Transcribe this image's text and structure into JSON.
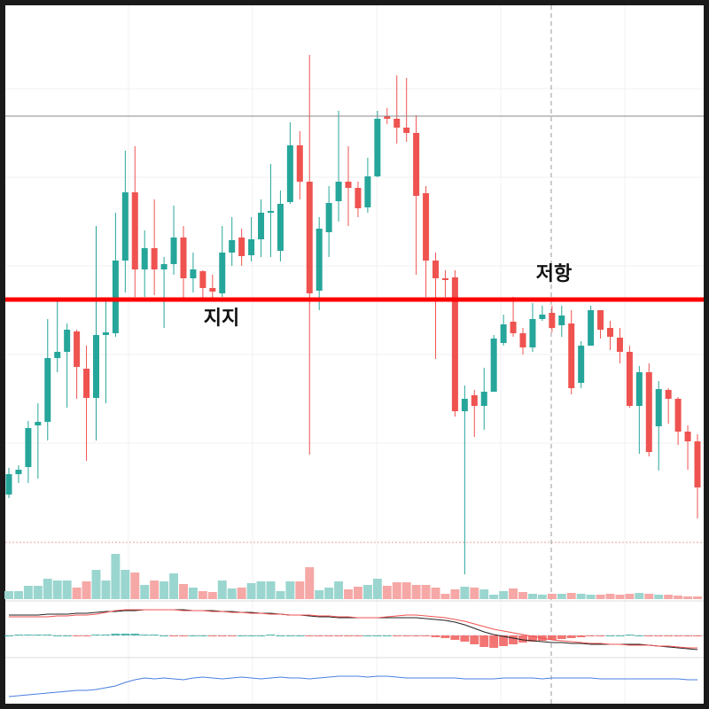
{
  "chart_data": {
    "type": "candlestick",
    "up_color": "#26a69a",
    "down_color": "#ef5350",
    "volume_up_color": "#9ad6cf",
    "volume_down_color": "#f5a8a6",
    "ylim": [
      -30,
      612
    ],
    "open": [
      62,
      85,
      93,
      140,
      144,
      216,
      223,
      246,
      204,
      171,
      242,
      244,
      326,
      403,
      316,
      340,
      316,
      322,
      352,
      306,
      314,
      295,
      289,
      335,
      352,
      332,
      350,
      380,
      337,
      392,
      456,
      415,
      292,
      358,
      393,
      415,
      408,
      386,
      421,
      489,
      486,
      476,
      470,
      402,
      326,
      306,
      307,
      156,
      174,
      162,
      178,
      233,
      257,
      244,
      228,
      260,
      267,
      253,
      255,
      188,
      230,
      270,
      250,
      239,
      223,
      162,
      200,
      139,
      180,
      170,
      133,
      122
    ],
    "close": [
      85,
      90,
      137,
      144,
      216,
      223,
      248,
      206,
      171,
      242,
      245,
      326,
      403,
      316,
      340,
      316,
      322,
      352,
      306,
      316,
      295,
      291,
      335,
      349,
      331,
      350,
      380,
      382,
      390,
      456,
      415,
      289,
      362,
      391,
      415,
      408,
      385,
      421,
      486,
      486,
      476,
      470,
      399,
      326,
      306,
      304,
      156,
      170,
      162,
      178,
      238,
      254,
      244,
      228,
      260,
      265,
      250,
      264,
      182,
      230,
      270,
      248,
      240,
      223,
      162,
      200,
      110,
      181,
      170,
      133,
      122,
      70
    ],
    "high": [
      92,
      95,
      145,
      165,
      260,
      280,
      255,
      248,
      230,
      365,
      280,
      380,
      450,
      455,
      360,
      395,
      330,
      388,
      365,
      335,
      315,
      310,
      365,
      375,
      362,
      375,
      395,
      435,
      405,
      482,
      472,
      558,
      375,
      410,
      495,
      455,
      415,
      442,
      495,
      498,
      535,
      532,
      490,
      410,
      335,
      315,
      315,
      185,
      180,
      205,
      242,
      265,
      285,
      250,
      278,
      275,
      275,
      275,
      270,
      235,
      275,
      270,
      258,
      250,
      230,
      207,
      210,
      190,
      182,
      172,
      140,
      130
    ],
    "low": [
      58,
      75,
      75,
      80,
      123,
      200,
      160,
      170,
      100,
      123,
      165,
      240,
      290,
      285,
      285,
      287,
      250,
      310,
      280,
      290,
      280,
      280,
      285,
      320,
      320,
      325,
      330,
      330,
      325,
      390,
      395,
      107,
      270,
      330,
      370,
      365,
      375,
      380,
      420,
      480,
      458,
      460,
      310,
      285,
      215,
      285,
      150,
      -28,
      127,
      135,
      178,
      230,
      240,
      220,
      223,
      258,
      245,
      240,
      175,
      182,
      230,
      238,
      225,
      210,
      160,
      108,
      105,
      89,
      142,
      118,
      90,
      35
    ],
    "volume": [
      9,
      9,
      15,
      15,
      23,
      21,
      21,
      13,
      20,
      33,
      21,
      51,
      33,
      30,
      16,
      21,
      20,
      29,
      17,
      13,
      9,
      8,
      21,
      12,
      13,
      18,
      20,
      20,
      9,
      20,
      20,
      36,
      10,
      13,
      20,
      11,
      14,
      16,
      23,
      15,
      19,
      19,
      16,
      16,
      13,
      6,
      11,
      14,
      13,
      11,
      5,
      9,
      12,
      8,
      6,
      5,
      6,
      6,
      7,
      6,
      5,
      5,
      6,
      5,
      6,
      7,
      6,
      5,
      5,
      4,
      3,
      3
    ],
    "volume_ylim": [
      0,
      60
    ],
    "hlines": [
      {
        "value": 489,
        "color": "#888888"
      },
      {
        "value": 282,
        "color": "#ff0000"
      }
    ],
    "annotations": [
      "지지",
      "저항"
    ],
    "macd": {
      "color": "#222222",
      "values": [
        23,
        23,
        23,
        23,
        24,
        24,
        24,
        25,
        25,
        26,
        27,
        27,
        28,
        28,
        29,
        29,
        29,
        29,
        29,
        28,
        28,
        28,
        27,
        27,
        26,
        26,
        25,
        25,
        24,
        23,
        23,
        22,
        21,
        21,
        20,
        20,
        20,
        20,
        20,
        20,
        20,
        20,
        20,
        19,
        18,
        17,
        15,
        12,
        8,
        4,
        1,
        -1,
        -3,
        -5,
        -6,
        -7,
        -8,
        -8,
        -9,
        -9,
        -10,
        -10,
        -10,
        -10,
        -10,
        -10,
        -11,
        -12,
        -13,
        -14,
        -15,
        -16
      ]
    },
    "signal": {
      "color": "#ef5350",
      "values": [
        21,
        21,
        21,
        21,
        21,
        22,
        22,
        23,
        23,
        24,
        26,
        28,
        29,
        29,
        29,
        29,
        29,
        29,
        28,
        28,
        28,
        27,
        27,
        26,
        26,
        25,
        25,
        24,
        24,
        23,
        23,
        23,
        22,
        22,
        21,
        21,
        20,
        20,
        20,
        21,
        22,
        23,
        23,
        22,
        21,
        20,
        18,
        16,
        13,
        10,
        7,
        5,
        3,
        1,
        -1,
        -3,
        -5,
        -6,
        -7,
        -8,
        -9,
        -9,
        -10,
        -10,
        -11,
        -11,
        -11,
        -12,
        -12,
        -13,
        -14,
        -14
      ]
    },
    "histogram": {
      "up_color": "#26a69a",
      "down_color": "#ef5350",
      "values": [
        0,
        1,
        1,
        1,
        1,
        0,
        0,
        -1,
        -1,
        1,
        1,
        2,
        2,
        2,
        1,
        1,
        0,
        -1,
        -1,
        0,
        0,
        -1,
        -1,
        -1,
        0,
        0,
        0,
        1,
        0,
        0,
        0,
        -1,
        -1,
        -1,
        -1,
        -1,
        -1,
        0,
        0,
        0,
        -1,
        -1,
        -1,
        -1,
        -2,
        -3,
        -5,
        -7,
        -10,
        -13,
        -14,
        -12,
        -10,
        -8,
        -7,
        -6,
        -5,
        -4,
        -3,
        -2,
        -1,
        -1,
        0,
        0,
        1,
        0,
        -1,
        -1,
        -1,
        -1,
        -1,
        -1
      ]
    },
    "macd_ylim": [
      -20,
      40
    ],
    "rsi": {
      "color": "#4a7fe0",
      "values": [
        14,
        15,
        16,
        17,
        18,
        19,
        20,
        21,
        21,
        22,
        24,
        26,
        30,
        33,
        35,
        34,
        35,
        34,
        33,
        35,
        36,
        35,
        34,
        35,
        36,
        35,
        34,
        35,
        36,
        35,
        35,
        34,
        35,
        36,
        37,
        37,
        37,
        36,
        37,
        37,
        36,
        35,
        35,
        35,
        35,
        35,
        35,
        34,
        34,
        34,
        34,
        35,
        35,
        35,
        35,
        34,
        35,
        35,
        35,
        35,
        35,
        34,
        34,
        34,
        34,
        34,
        34,
        34,
        34,
        34,
        33,
        33
      ]
    },
    "rsi_ylim": [
      5,
      55
    ]
  }
}
